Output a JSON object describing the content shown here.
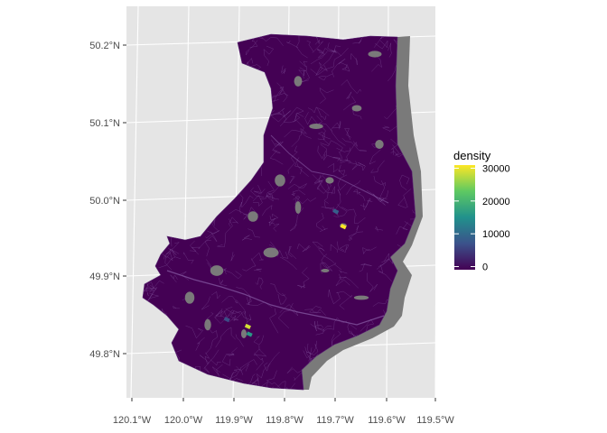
{
  "chart_data": {
    "type": "heatmap",
    "map_kind": "choropleth",
    "x_ticks": [
      "120.1°W",
      "120.0°W",
      "119.9°W",
      "119.8°W",
      "119.7°W",
      "119.6°W",
      "119.5°W"
    ],
    "y_ticks": [
      "50.2°N",
      "50.1°N",
      "50.0°N",
      "49.9°N",
      "49.8°N"
    ],
    "xlim": [
      -120.1,
      -119.5
    ],
    "ylim": [
      49.75,
      50.22
    ],
    "legend": {
      "title": "density",
      "placement": "right",
      "min": 0,
      "max": 30000,
      "ticks": [
        "30000",
        "20000",
        "10000",
        "0"
      ],
      "tick_values": [
        30000,
        20000,
        10000,
        0
      ]
    },
    "grid": true,
    "colors": {
      "panel": "#e5e5e5",
      "grid": "#ffffff",
      "shadow": "#7a7a7a",
      "region_fill": "#440154",
      "tract_lines": "#8a5fa8",
      "colormap": [
        "#440154",
        "#3b528b",
        "#21918c",
        "#5ec962",
        "#fde725"
      ]
    },
    "hotspots": [
      {
        "lon": -119.685,
        "lat": 49.955,
        "value": 30000
      },
      {
        "lon": -119.878,
        "lat": 49.83,
        "value": 28000
      },
      {
        "lon": -119.875,
        "lat": 49.82,
        "value": 16000
      },
      {
        "lon": -119.7,
        "lat": 49.975,
        "value": 9000
      },
      {
        "lon": -119.92,
        "lat": 49.84,
        "value": 7000
      }
    ]
  }
}
